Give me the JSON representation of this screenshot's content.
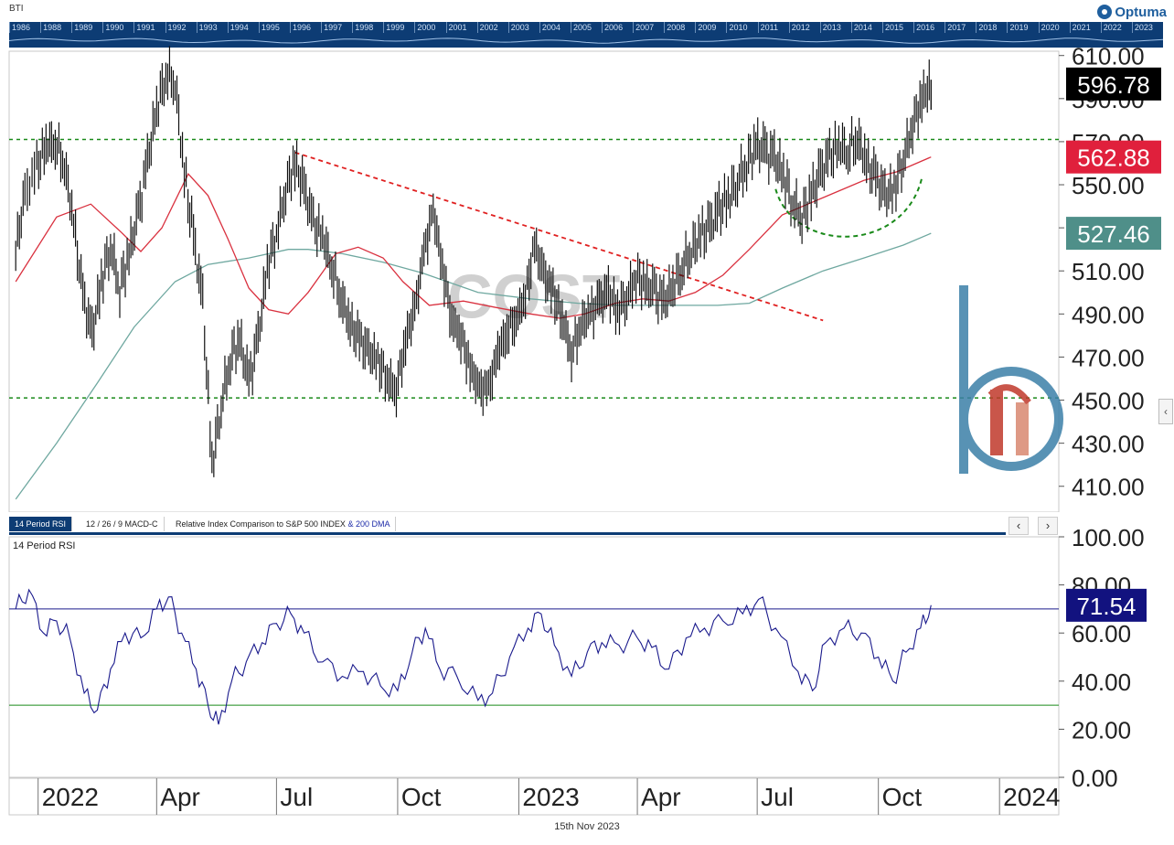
{
  "window": {
    "symbol_label": "BTI",
    "brand": "Optuma",
    "footer_date": "15th Nov 2023"
  },
  "overview_years": [
    "1986",
    "1988",
    "1989",
    "1990",
    "1991",
    "1992",
    "1993",
    "1994",
    "1995",
    "1996",
    "1997",
    "1998",
    "1999",
    "2000",
    "2001",
    "2002",
    "2003",
    "2004",
    "2005",
    "2006",
    "2007",
    "2008",
    "2009",
    "2010",
    "2011",
    "2012",
    "2013",
    "2014",
    "2015",
    "2016",
    "2017",
    "2018",
    "2019",
    "2020",
    "2021",
    "2022",
    "2023"
  ],
  "tabs": [
    {
      "label": "14 Period RSI",
      "active": true
    },
    {
      "label": "12 / 26 / 9 MACD-C",
      "active": false
    },
    {
      "label": "Relative Index Comparison to S&P 500 INDEX",
      "suffix": "& 200 DMA",
      "active": false
    }
  ],
  "nav": {
    "left": "‹",
    "right": "›",
    "side": "‹"
  },
  "watermark": "COST",
  "chart_data": [
    {
      "type": "line",
      "panel": "price",
      "title": "",
      "x_ticks": [
        "2022",
        "Apr",
        "Jul",
        "Oct",
        "2023",
        "Apr",
        "Jul",
        "Oct",
        "2024"
      ],
      "y_ticks": [
        "610.00",
        "590.00",
        "570.00",
        "550.00",
        "530.00",
        "510.00",
        "490.00",
        "470.00",
        "450.00",
        "430.00",
        "410.00"
      ],
      "ylim": [
        398,
        612
      ],
      "price_labels": {
        "last": "596.78",
        "ma_short": "562.88",
        "ma_long": "527.46"
      },
      "colors": {
        "price": "#111111",
        "ma_short": "#d9313f",
        "ma_long": "#6fa8a0",
        "trend": "#e02020",
        "support": "#1a8a1a",
        "tag_last": "#000000",
        "tag_ma_short": "#e0203c",
        "tag_ma_long": "#4f8f89"
      },
      "support_levels": [
        571,
        451
      ],
      "trendline": {
        "from": [
          "2022-07-15",
          565
        ],
        "to": [
          "2023-08-20",
          487
        ]
      },
      "price_series": [
        [
          "2021-12-15",
          520
        ],
        [
          "2021-12-22",
          545
        ],
        [
          "2021-12-31",
          558
        ],
        [
          "2022-01-07",
          568
        ],
        [
          "2022-01-14",
          570
        ],
        [
          "2022-01-21",
          560
        ],
        [
          "2022-01-28",
          532
        ],
        [
          "2022-02-04",
          498
        ],
        [
          "2022-02-11",
          480
        ],
        [
          "2022-02-18",
          505
        ],
        [
          "2022-02-25",
          522
        ],
        [
          "2022-03-04",
          502
        ],
        [
          "2022-03-11",
          518
        ],
        [
          "2022-03-18",
          536
        ],
        [
          "2022-03-25",
          560
        ],
        [
          "2022-04-01",
          585
        ],
        [
          "2022-04-08",
          602
        ],
        [
          "2022-04-15",
          598
        ],
        [
          "2022-04-22",
          555
        ],
        [
          "2022-04-29",
          525
        ],
        [
          "2022-05-06",
          495
        ],
        [
          "2022-05-13",
          420
        ],
        [
          "2022-05-20",
          448
        ],
        [
          "2022-05-27",
          470
        ],
        [
          "2022-06-03",
          478
        ],
        [
          "2022-06-10",
          458
        ],
        [
          "2022-06-17",
          478
        ],
        [
          "2022-06-24",
          512
        ],
        [
          "2022-07-01",
          528
        ],
        [
          "2022-07-08",
          548
        ],
        [
          "2022-07-15",
          560
        ],
        [
          "2022-07-22",
          548
        ],
        [
          "2022-07-29",
          532
        ],
        [
          "2022-08-05",
          526
        ],
        [
          "2022-08-12",
          512
        ],
        [
          "2022-08-19",
          498
        ],
        [
          "2022-08-26",
          485
        ],
        [
          "2022-09-02",
          478
        ],
        [
          "2022-09-09",
          472
        ],
        [
          "2022-09-16",
          468
        ],
        [
          "2022-09-23",
          460
        ],
        [
          "2022-09-30",
          455
        ],
        [
          "2022-10-07",
          478
        ],
        [
          "2022-10-14",
          492
        ],
        [
          "2022-10-21",
          518
        ],
        [
          "2022-10-28",
          538
        ],
        [
          "2022-11-04",
          512
        ],
        [
          "2022-11-11",
          488
        ],
        [
          "2022-11-18",
          480
        ],
        [
          "2022-11-25",
          465
        ],
        [
          "2022-12-02",
          455
        ],
        [
          "2022-12-09",
          455
        ],
        [
          "2022-12-16",
          472
        ],
        [
          "2022-12-23",
          482
        ],
        [
          "2022-12-30",
          488
        ],
        [
          "2023-01-06",
          498
        ],
        [
          "2023-01-13",
          522
        ],
        [
          "2023-01-20",
          508
        ],
        [
          "2023-01-27",
          500
        ],
        [
          "2023-02-03",
          488
        ],
        [
          "2023-02-10",
          472
        ],
        [
          "2023-02-17",
          485
        ],
        [
          "2023-02-24",
          490
        ],
        [
          "2023-03-03",
          495
        ],
        [
          "2023-03-10",
          500
        ],
        [
          "2023-03-17",
          492
        ],
        [
          "2023-03-24",
          498
        ],
        [
          "2023-03-31",
          508
        ],
        [
          "2023-04-07",
          503
        ],
        [
          "2023-04-14",
          500
        ],
        [
          "2023-04-21",
          495
        ],
        [
          "2023-04-28",
          503
        ],
        [
          "2023-05-05",
          512
        ],
        [
          "2023-05-12",
          520
        ],
        [
          "2023-05-19",
          526
        ],
        [
          "2023-05-26",
          530
        ],
        [
          "2023-06-02",
          538
        ],
        [
          "2023-06-09",
          544
        ],
        [
          "2023-06-16",
          552
        ],
        [
          "2023-06-23",
          560
        ],
        [
          "2023-06-30",
          568
        ],
        [
          "2023-07-07",
          565
        ],
        [
          "2023-07-14",
          562
        ],
        [
          "2023-07-21",
          555
        ],
        [
          "2023-07-28",
          542
        ],
        [
          "2023-08-04",
          535
        ],
        [
          "2023-08-11",
          545
        ],
        [
          "2023-08-18",
          555
        ],
        [
          "2023-08-25",
          563
        ],
        [
          "2023-09-01",
          568
        ],
        [
          "2023-09-08",
          566
        ],
        [
          "2023-09-15",
          572
        ],
        [
          "2023-09-22",
          560
        ],
        [
          "2023-09-29",
          553
        ],
        [
          "2023-10-06",
          545
        ],
        [
          "2023-10-13",
          548
        ],
        [
          "2023-10-20",
          562
        ],
        [
          "2023-10-27",
          578
        ],
        [
          "2023-11-03",
          590
        ],
        [
          "2023-11-10",
          596.78
        ]
      ],
      "ma_short_series": [
        [
          "2021-12-15",
          505
        ],
        [
          "2022-01-15",
          535
        ],
        [
          "2022-02-10",
          541
        ],
        [
          "2022-03-05",
          528
        ],
        [
          "2022-03-20",
          519
        ],
        [
          "2022-04-05",
          530
        ],
        [
          "2022-04-25",
          555
        ],
        [
          "2022-05-10",
          545
        ],
        [
          "2022-05-25",
          525
        ],
        [
          "2022-06-10",
          502
        ],
        [
          "2022-06-25",
          492
        ],
        [
          "2022-07-10",
          490
        ],
        [
          "2022-07-25",
          500
        ],
        [
          "2022-08-15",
          518
        ],
        [
          "2022-09-01",
          521
        ],
        [
          "2022-09-20",
          516
        ],
        [
          "2022-10-05",
          505
        ],
        [
          "2022-10-25",
          494
        ],
        [
          "2022-11-20",
          496
        ],
        [
          "2022-12-15",
          493
        ],
        [
          "2023-01-10",
          490
        ],
        [
          "2023-02-01",
          488
        ],
        [
          "2023-02-20",
          490
        ],
        [
          "2023-03-15",
          495
        ],
        [
          "2023-04-05",
          497
        ],
        [
          "2023-04-25",
          496
        ],
        [
          "2023-05-15",
          500
        ],
        [
          "2023-06-05",
          508
        ],
        [
          "2023-06-25",
          520
        ],
        [
          "2023-07-20",
          536
        ],
        [
          "2023-08-20",
          544
        ],
        [
          "2023-09-20",
          552
        ],
        [
          "2023-10-15",
          556
        ],
        [
          "2023-11-10",
          562.88
        ]
      ],
      "ma_long_series": [
        [
          "2021-12-15",
          404
        ],
        [
          "2022-01-15",
          430
        ],
        [
          "2022-02-15",
          458
        ],
        [
          "2022-03-15",
          484
        ],
        [
          "2022-04-15",
          505
        ],
        [
          "2022-05-10",
          513
        ],
        [
          "2022-06-10",
          516
        ],
        [
          "2022-07-10",
          520
        ],
        [
          "2022-07-25",
          520
        ],
        [
          "2022-08-20",
          518
        ],
        [
          "2022-09-20",
          514
        ],
        [
          "2022-10-20",
          509
        ],
        [
          "2022-12-01",
          500
        ],
        [
          "2023-01-10",
          497
        ],
        [
          "2023-02-15",
          495
        ],
        [
          "2023-03-20",
          494
        ],
        [
          "2023-05-01",
          494
        ],
        [
          "2023-06-01",
          494
        ],
        [
          "2023-06-25",
          495
        ],
        [
          "2023-07-20",
          502
        ],
        [
          "2023-08-20",
          510
        ],
        [
          "2023-09-20",
          516
        ],
        [
          "2023-10-20",
          522
        ],
        [
          "2023-11-10",
          527.46
        ]
      ]
    },
    {
      "type": "line",
      "panel": "rsi",
      "title": "",
      "panel_label": "14 Period RSI",
      "y_ticks": [
        "100.00",
        "80.00",
        "60.00",
        "40.00",
        "20.00",
        "0.00"
      ],
      "ylim": [
        0,
        100
      ],
      "levels": {
        "overbought": 70,
        "oversold": 30
      },
      "last_value": "71.54",
      "colors": {
        "line": "#1a1a8c",
        "overbought": "#1a1a8c",
        "oversold": "#1a8a1a",
        "tag": "#12127f"
      },
      "series": [
        [
          "2021-12-15",
          70
        ],
        [
          "2021-12-25",
          78
        ],
        [
          "2022-01-05",
          60
        ],
        [
          "2022-01-15",
          65
        ],
        [
          "2022-01-25",
          58
        ],
        [
          "2022-02-05",
          35
        ],
        [
          "2022-02-15",
          28
        ],
        [
          "2022-02-25",
          45
        ],
        [
          "2022-03-08",
          60
        ],
        [
          "2022-03-20",
          58
        ],
        [
          "2022-04-01",
          70
        ],
        [
          "2022-04-10",
          75
        ],
        [
          "2022-04-20",
          60
        ],
        [
          "2022-05-01",
          45
        ],
        [
          "2022-05-10",
          30
        ],
        [
          "2022-05-18",
          22
        ],
        [
          "2022-05-28",
          40
        ],
        [
          "2022-06-08",
          48
        ],
        [
          "2022-06-20",
          56
        ],
        [
          "2022-07-01",
          64
        ],
        [
          "2022-07-12",
          68
        ],
        [
          "2022-07-22",
          60
        ],
        [
          "2022-08-05",
          48
        ],
        [
          "2022-08-20",
          42
        ],
        [
          "2022-09-05",
          44
        ],
        [
          "2022-09-18",
          38
        ],
        [
          "2022-10-01",
          36
        ],
        [
          "2022-10-12",
          52
        ],
        [
          "2022-10-22",
          62
        ],
        [
          "2022-11-02",
          45
        ],
        [
          "2022-11-15",
          42
        ],
        [
          "2022-12-01",
          32
        ],
        [
          "2022-12-12",
          35
        ],
        [
          "2022-12-25",
          50
        ],
        [
          "2023-01-08",
          62
        ],
        [
          "2023-01-18",
          68
        ],
        [
          "2023-01-28",
          55
        ],
        [
          "2023-02-10",
          42
        ],
        [
          "2023-02-22",
          52
        ],
        [
          "2023-03-05",
          56
        ],
        [
          "2023-03-18",
          55
        ],
        [
          "2023-04-01",
          58
        ],
        [
          "2023-04-12",
          54
        ],
        [
          "2023-04-25",
          45
        ],
        [
          "2023-05-08",
          58
        ],
        [
          "2023-05-22",
          62
        ],
        [
          "2023-06-05",
          65
        ],
        [
          "2023-06-20",
          68
        ],
        [
          "2023-07-02",
          74
        ],
        [
          "2023-07-15",
          62
        ],
        [
          "2023-08-01",
          44
        ],
        [
          "2023-08-12",
          36
        ],
        [
          "2023-08-22",
          56
        ],
        [
          "2023-09-05",
          62
        ],
        [
          "2023-09-18",
          60
        ],
        [
          "2023-10-01",
          50
        ],
        [
          "2023-10-12",
          40
        ],
        [
          "2023-10-22",
          52
        ],
        [
          "2023-11-02",
          62
        ],
        [
          "2023-11-10",
          71.54
        ]
      ]
    }
  ]
}
